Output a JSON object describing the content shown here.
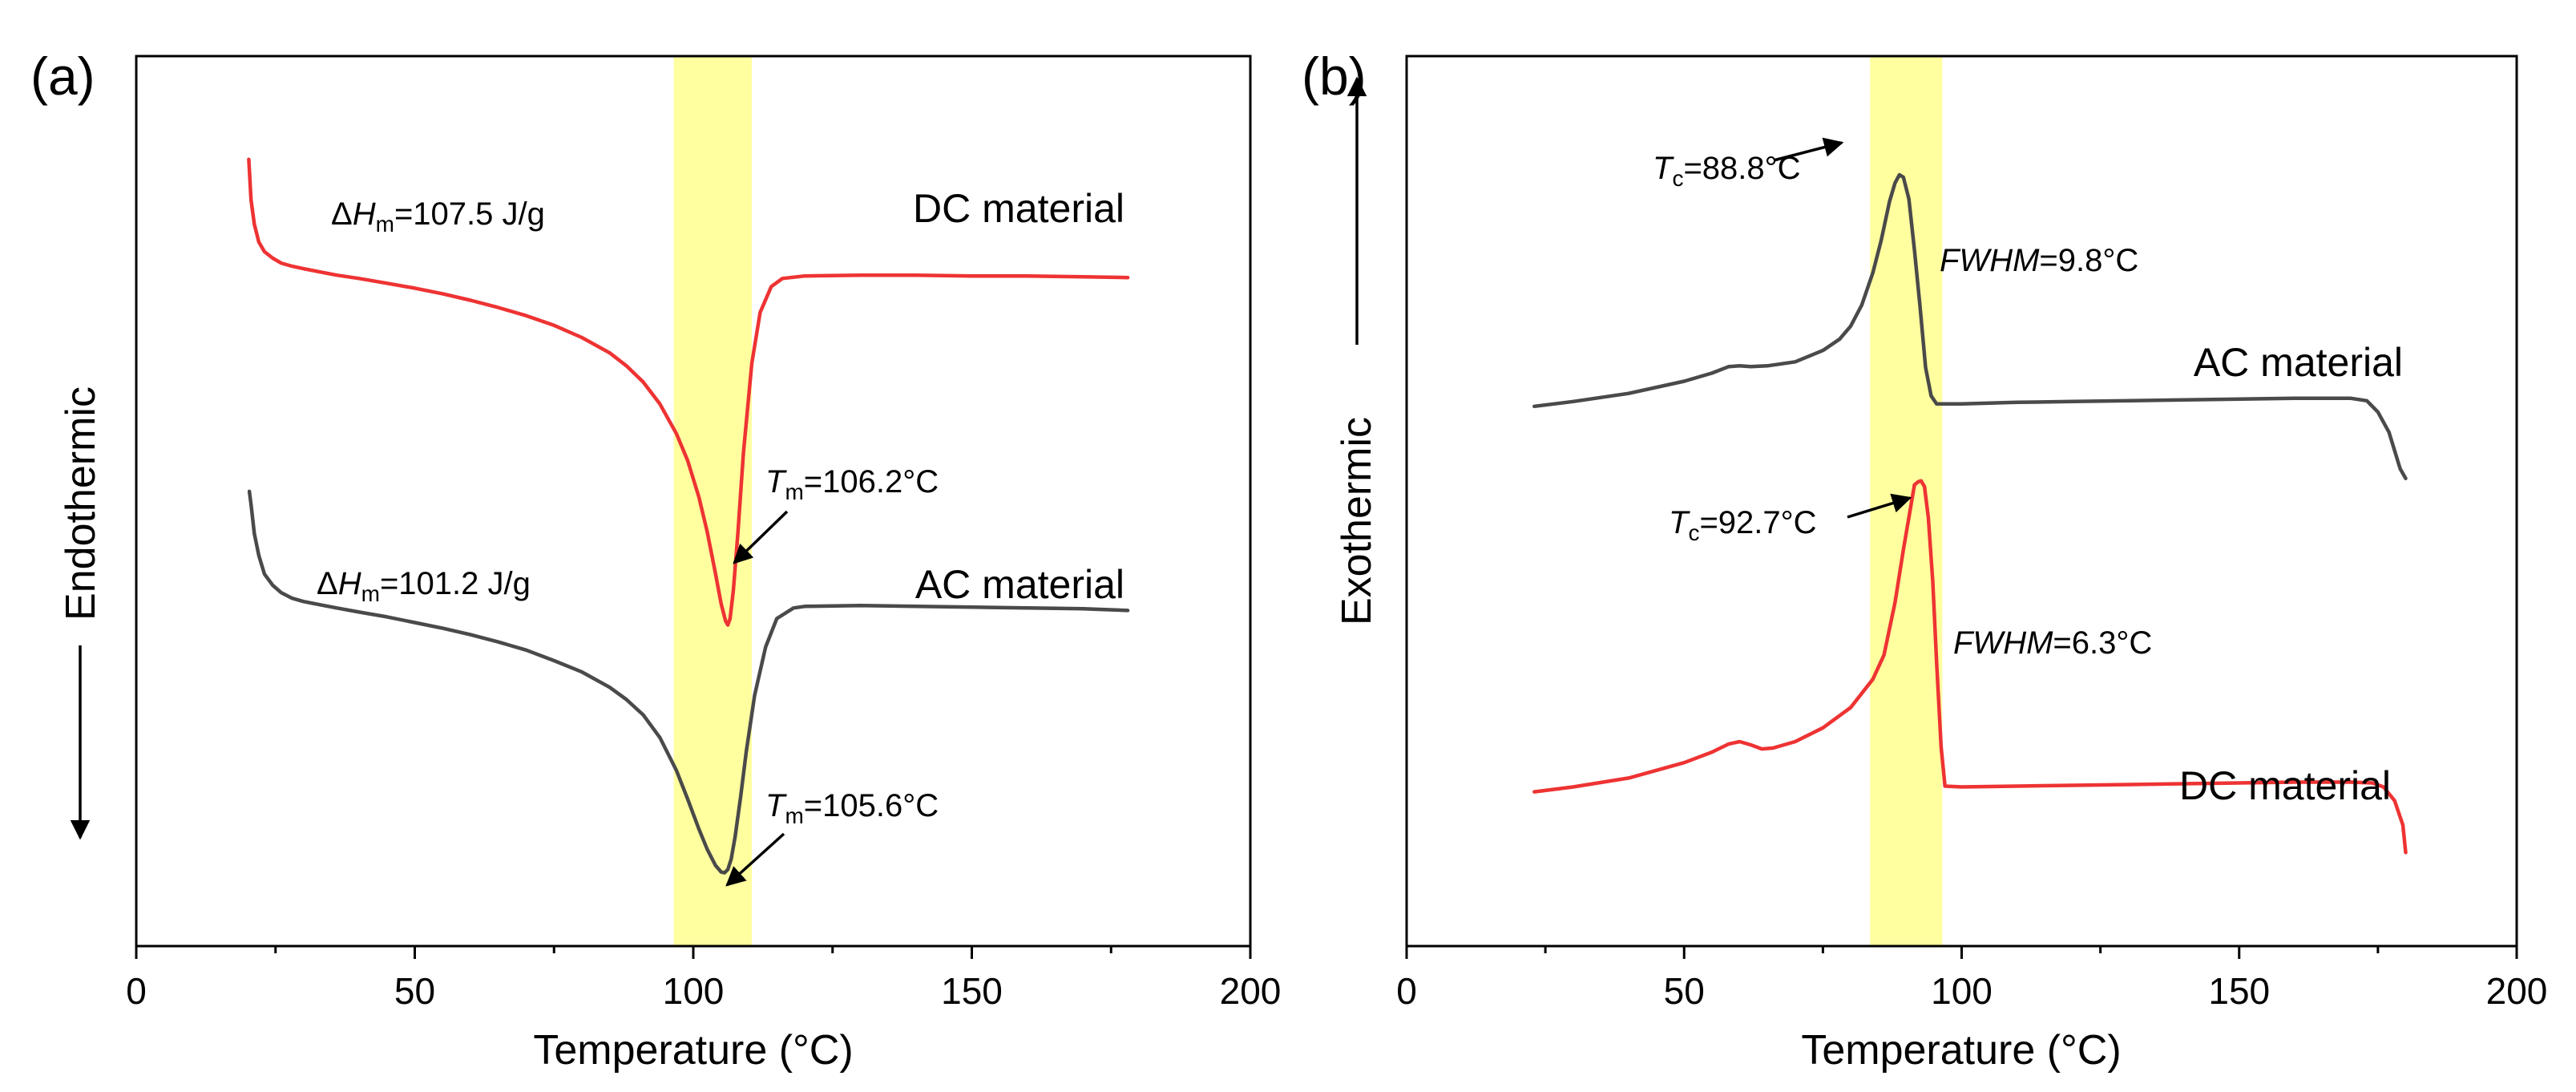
{
  "chart_data": [
    {
      "panel_label": "(a)",
      "type": "line",
      "xlabel": "Temperature (°C)",
      "ylabel": "Endothermic",
      "xlim": [
        0,
        200
      ],
      "ylim": [
        0,
        1
      ],
      "x_ticks": [
        "0",
        "50",
        "100",
        "150",
        "200"
      ],
      "y_ticks": [],
      "highlight_band": [
        96.5,
        110.5
      ],
      "highlight_color": "#ffffa0",
      "series": [
        {
          "name": "DC material",
          "color": "#ee3333",
          "x": [
            20.2,
            20.6,
            21.2,
            22,
            23,
            24.5,
            26,
            28,
            30,
            33,
            36,
            40,
            45,
            50,
            55,
            60,
            65,
            70,
            75,
            80,
            85,
            88,
            91,
            94,
            97,
            99,
            101,
            102.5,
            104,
            105,
            105.8,
            106.2,
            106.6,
            107.2,
            108,
            109,
            110.5,
            112,
            114,
            116,
            120,
            130,
            140,
            150,
            160,
            170,
            178
          ],
          "y": [
            0.922,
            0.872,
            0.842,
            0.82,
            0.808,
            0.8,
            0.794,
            0.79,
            0.787,
            0.783,
            0.779,
            0.775,
            0.769,
            0.763,
            0.756,
            0.748,
            0.739,
            0.729,
            0.717,
            0.702,
            0.683,
            0.667,
            0.647,
            0.62,
            0.583,
            0.55,
            0.505,
            0.462,
            0.41,
            0.373,
            0.352,
            0.347,
            0.355,
            0.39,
            0.46,
            0.56,
            0.67,
            0.733,
            0.765,
            0.775,
            0.778,
            0.779,
            0.779,
            0.778,
            0.778,
            0.777,
            0.776
          ]
        },
        {
          "name": "AC material",
          "color": "#4a4a4a",
          "x": [
            20.3,
            20.6,
            21.2,
            22,
            23,
            24.5,
            26,
            28,
            30,
            33,
            36,
            40,
            45,
            50,
            55,
            60,
            65,
            70,
            75,
            80,
            85,
            88,
            91,
            94,
            97,
            99,
            101,
            102.5,
            104,
            105,
            105.6,
            106.2,
            106.8,
            107.5,
            108.5,
            109.5,
            111,
            113,
            115,
            118,
            120,
            130,
            140,
            150,
            160,
            170,
            178
          ],
          "y": [
            0.512,
            0.496,
            0.46,
            0.433,
            0.41,
            0.396,
            0.387,
            0.38,
            0.376,
            0.372,
            0.368,
            0.363,
            0.357,
            0.35,
            0.343,
            0.335,
            0.326,
            0.316,
            0.303,
            0.289,
            0.27,
            0.255,
            0.236,
            0.208,
            0.167,
            0.132,
            0.095,
            0.07,
            0.05,
            0.042,
            0.041,
            0.045,
            0.058,
            0.085,
            0.135,
            0.19,
            0.26,
            0.32,
            0.355,
            0.368,
            0.37,
            0.371,
            0.37,
            0.369,
            0.368,
            0.367,
            0.365
          ]
        }
      ],
      "curve_labels": [
        {
          "series": "DC material",
          "text": "DC material"
        },
        {
          "series": "AC material",
          "text": "AC material"
        }
      ],
      "annotations": {
        "dc_enthalpy": {
          "prefix": "Δ",
          "symbol": "H",
          "subscript": "m",
          "value": "=107.5 J/g"
        },
        "ac_enthalpy": {
          "prefix": "Δ",
          "symbol": "H",
          "subscript": "m",
          "value": "=101.2 J/g"
        },
        "dc_peak": {
          "symbol": "T",
          "subscript": "m",
          "value": "=106.2°C",
          "point": [
            106.2,
            0.347
          ]
        },
        "ac_peak": {
          "symbol": "T",
          "subscript": "m",
          "value": "=105.6°C",
          "point": [
            105.6,
            0.041
          ]
        }
      }
    },
    {
      "panel_label": "(b)",
      "type": "line",
      "xlabel": "Temperature (°C)",
      "ylabel": "Exothermic",
      "xlim": [
        0,
        200
      ],
      "ylim": [
        0,
        1
      ],
      "x_ticks": [
        "0",
        "50",
        "100",
        "150",
        "200"
      ],
      "y_ticks": [],
      "highlight_band": [
        83.5,
        96.5
      ],
      "highlight_color": "#ffffa0",
      "series": [
        {
          "name": "AC material",
          "color": "#4a4a4a",
          "x": [
            23,
            30,
            40,
            50,
            55,
            58,
            60,
            62,
            65,
            70,
            75,
            78,
            80,
            82,
            84,
            85.5,
            87,
            88,
            88.8,
            89.5,
            90.5,
            91.5,
            92.5,
            93.5,
            94.5,
            95.5,
            96.5,
            100,
            110,
            120,
            140,
            160,
            170,
            173,
            175,
            177,
            179,
            180
          ],
          "y": [
            0.617,
            0.623,
            0.633,
            0.648,
            0.658,
            0.666,
            0.667,
            0.666,
            0.667,
            0.672,
            0.686,
            0.7,
            0.716,
            0.742,
            0.782,
            0.822,
            0.87,
            0.893,
            0.903,
            0.9,
            0.873,
            0.81,
            0.74,
            0.665,
            0.63,
            0.62,
            0.62,
            0.62,
            0.622,
            0.623,
            0.625,
            0.627,
            0.627,
            0.624,
            0.61,
            0.585,
            0.54,
            0.528
          ]
        },
        {
          "name": "DC material",
          "color": "#ee3333",
          "x": [
            23,
            30,
            40,
            50,
            55,
            58,
            60,
            62,
            64,
            66,
            70,
            75,
            80,
            84,
            86,
            88,
            89.5,
            90.5,
            91.5,
            92.2,
            92.7,
            93.3,
            94,
            94.8,
            95.5,
            96.3,
            97,
            100,
            110,
            120,
            140,
            160,
            170,
            174,
            176,
            178,
            179.5,
            180
          ],
          "y": [
            0.141,
            0.147,
            0.158,
            0.177,
            0.19,
            0.2,
            0.203,
            0.199,
            0.194,
            0.195,
            0.203,
            0.22,
            0.245,
            0.28,
            0.31,
            0.375,
            0.44,
            0.48,
            0.52,
            0.524,
            0.525,
            0.518,
            0.48,
            0.4,
            0.3,
            0.196,
            0.148,
            0.147,
            0.148,
            0.149,
            0.151,
            0.153,
            0.153,
            0.152,
            0.147,
            0.13,
            0.1,
            0.066
          ]
        }
      ],
      "curve_labels": [
        {
          "series": "AC material",
          "text": "AC material"
        },
        {
          "series": "DC material",
          "text": "DC material"
        }
      ],
      "annotations": {
        "ac_peak": {
          "symbol": "T",
          "subscript": "c",
          "value": "=88.8°C",
          "point": [
            88.8,
            0.903
          ]
        },
        "dc_peak": {
          "symbol": "T",
          "subscript": "c",
          "value": "=92.7°C",
          "point": [
            92.7,
            0.525
          ]
        },
        "ac_fwhm": {
          "symbol": "FWHM",
          "value": "=9.8°C"
        },
        "dc_fwhm": {
          "symbol": "FWHM",
          "value": "=6.3°C"
        }
      }
    }
  ]
}
